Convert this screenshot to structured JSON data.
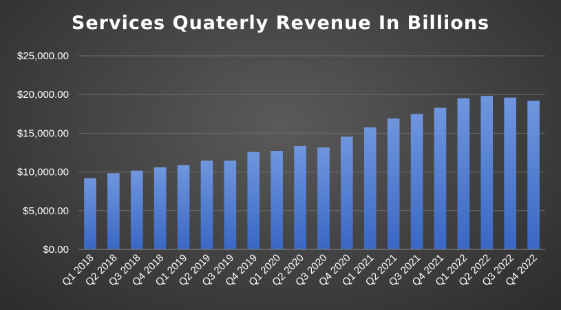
{
  "chart_data": {
    "type": "bar",
    "title": "Services Quaterly Revenue In Billions",
    "xlabel": "",
    "ylabel": "",
    "categories": [
      "Q1 2018",
      "Q2 2018",
      "Q3 2018",
      "Q4 2018",
      "Q1 2019",
      "Q2 2019",
      "Q3 2019",
      "Q4 2019",
      "Q1 2020",
      "Q2 2020",
      "Q3 2020",
      "Q4 2020",
      "Q1 2021",
      "Q2 2021",
      "Q3 2021",
      "Q4 2021",
      "Q1 2022",
      "Q2 2022",
      "Q3 2022",
      "Q4 2022"
    ],
    "values": [
      9190,
      9850,
      10170,
      10600,
      10880,
      11460,
      11460,
      12570,
      12720,
      13350,
      13160,
      14550,
      15760,
      16900,
      17490,
      18280,
      19520,
      19820,
      19600,
      19190
    ],
    "ylim": [
      0,
      25000
    ],
    "yticks": [
      0,
      5000,
      10000,
      15000,
      20000,
      25000
    ],
    "ytick_labels": [
      "$0.00",
      "$5,000.00",
      "$10,000.00",
      "$15,000.00",
      "$20,000.00",
      "$25,000.00"
    ],
    "grid": true,
    "legend": "none",
    "colors": {
      "bar_top": "#6f96de",
      "bar_bottom": "#3a67c4",
      "gridline": "#6b6b6b",
      "axis_line": "#8a8a8a",
      "text": "#ffffff"
    }
  }
}
